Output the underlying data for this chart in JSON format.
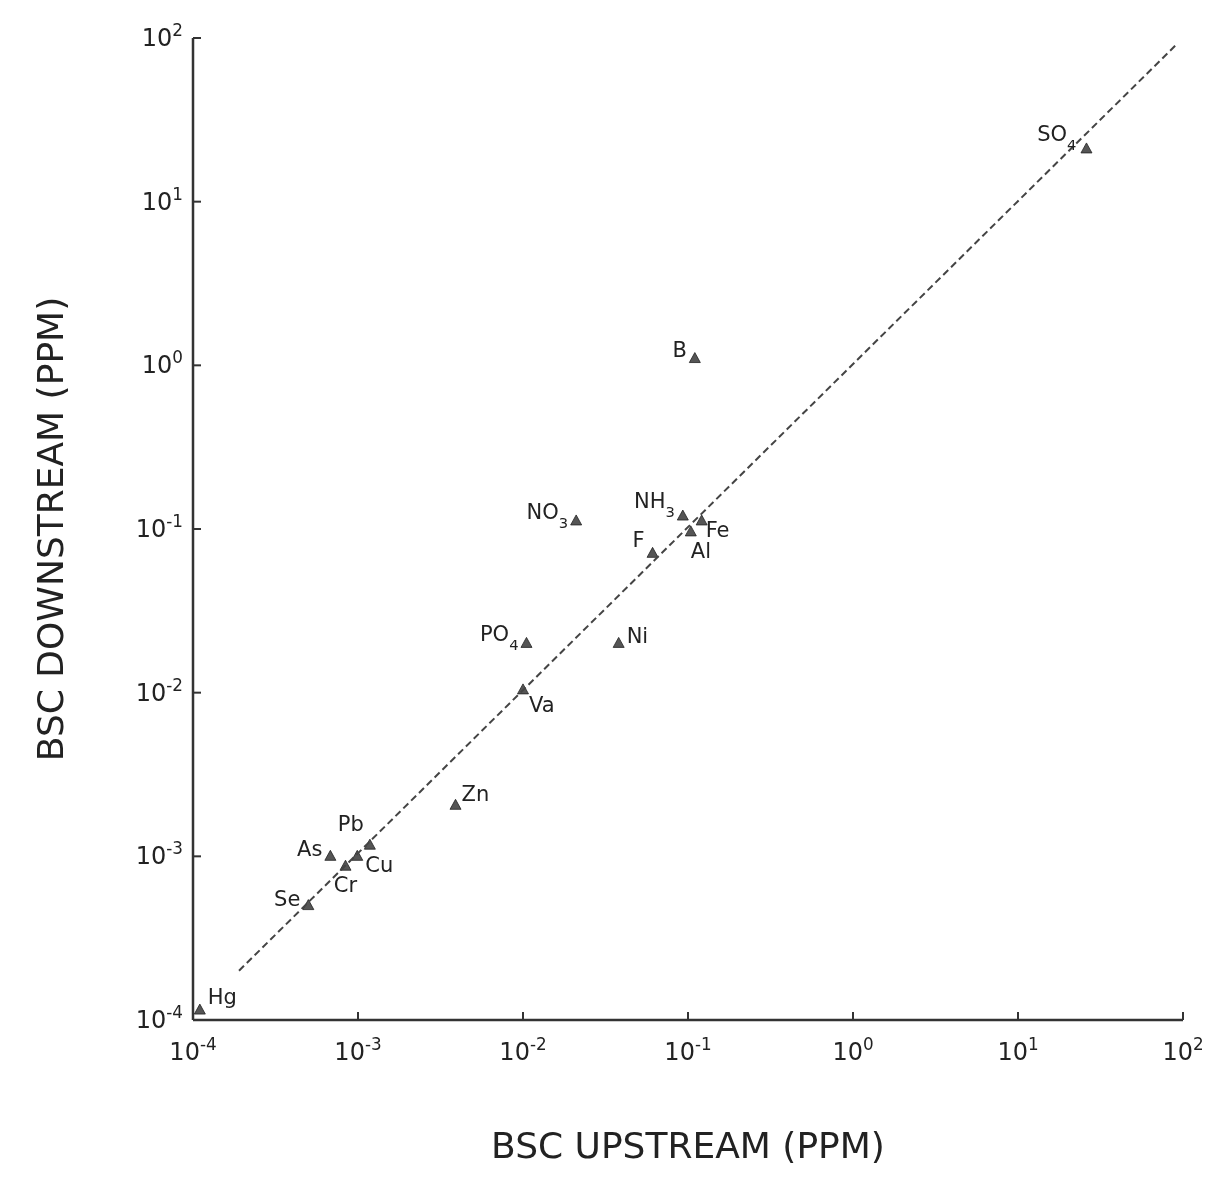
{
  "chart_data": {
    "type": "scatter",
    "xlabel": "BSC UPSTREAM (PPM)",
    "ylabel": "BSC DOWNSTREAM (PPM)",
    "log": "xy",
    "grid": false,
    "marker": "triangle",
    "xlim": [
      0.0001,
      100
    ],
    "ylim": [
      0.0001,
      100
    ],
    "xticks": [
      {
        "value": 0.0001,
        "label": "10$^{-4}$"
      },
      {
        "value": 0.001,
        "label": "10$^{-3}$"
      },
      {
        "value": 0.01,
        "label": "10$^{-2}$"
      },
      {
        "value": 0.1,
        "label": "10$^{-1}$"
      },
      {
        "value": 1,
        "label": "10$^{0}$"
      },
      {
        "value": 10,
        "label": "10$^{1}$"
      },
      {
        "value": 100,
        "label": "10$^{2}$"
      }
    ],
    "yticks": [
      {
        "value": 0.0001,
        "label": "10$^{-4}$"
      },
      {
        "value": 0.001,
        "label": "10$^{-3}$"
      },
      {
        "value": 0.01,
        "label": "10$^{-2}$"
      },
      {
        "value": 0.1,
        "label": "10$^{-1}$"
      },
      {
        "value": 1,
        "label": "10$^{0}$"
      },
      {
        "value": 10,
        "label": "10$^{1}$"
      },
      {
        "value": 100,
        "label": "10$^{2}$"
      }
    ],
    "series": [
      {
        "color": "#555555",
        "x": [
          0.00011,
          0.0005,
          0.00068,
          0.00084,
          0.00099,
          0.00118,
          0.0039,
          0.01,
          0.0105,
          0.021,
          0.038,
          0.061,
          0.093,
          0.104,
          0.121,
          0.11,
          26
        ],
        "values": [
          0.000115,
          0.0005,
          0.001,
          0.00087,
          0.001,
          0.00117,
          0.00205,
          0.0104,
          0.02,
          0.112,
          0.02,
          0.071,
          0.12,
          0.096,
          0.112,
          1.1,
          21
        ]
      },
      {
        "type": "line",
        "color": "#444444",
        "line_style": "dashed",
        "marker": "none",
        "x": [
          0.00019,
          90
        ],
        "values": [
          0.0002,
          90
        ]
      }
    ],
    "annotations": [
      {
        "text": "Hg",
        "x": 0.00011,
        "y": 0.000115
      },
      {
        "text": "Se",
        "x": 0.0005,
        "y": 0.0005
      },
      {
        "text": "As",
        "x": 0.00068,
        "y": 0.001
      },
      {
        "text": "Cr",
        "x": 0.00084,
        "y": 0.00087
      },
      {
        "text": "Cu",
        "x": 0.00099,
        "y": 0.001
      },
      {
        "text": "Pb",
        "x": 0.00118,
        "y": 0.00117
      },
      {
        "text": "Zn",
        "x": 0.0039,
        "y": 0.00205
      },
      {
        "text": "Va",
        "x": 0.01,
        "y": 0.0104
      },
      {
        "text": "PO$_{4}$",
        "x": 0.0105,
        "y": 0.02
      },
      {
        "text": "NO$_{3}$",
        "x": 0.021,
        "y": 0.112
      },
      {
        "text": "Ni",
        "x": 0.038,
        "y": 0.02
      },
      {
        "text": "F",
        "x": 0.061,
        "y": 0.071
      },
      {
        "text": "NH$_{3}$",
        "x": 0.093,
        "y": 0.12
      },
      {
        "text": "Al",
        "x": 0.104,
        "y": 0.096
      },
      {
        "text": "Fe",
        "x": 0.121,
        "y": 0.112
      },
      {
        "text": "B",
        "x": 0.11,
        "y": 1.1
      },
      {
        "text": "SO$_{4}$",
        "x": 26,
        "y": 21
      }
    ]
  }
}
